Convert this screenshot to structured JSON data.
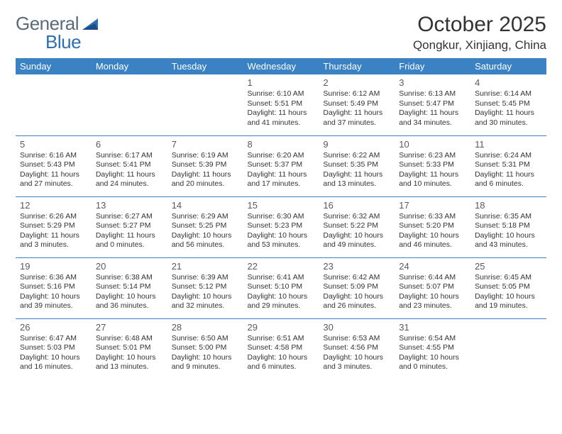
{
  "brand": {
    "name_a": "General",
    "name_b": "Blue"
  },
  "title": "October 2025",
  "location": "Qongkur, Xinjiang, China",
  "colors": {
    "header_bg": "#3b82c4",
    "header_text": "#ffffff",
    "rule": "#3b82c4",
    "body_text": "#333333",
    "logo_gray": "#5a6b7a",
    "logo_blue": "#2f6fb0",
    "page_bg": "#ffffff"
  },
  "day_headers": [
    "Sunday",
    "Monday",
    "Tuesday",
    "Wednesday",
    "Thursday",
    "Friday",
    "Saturday"
  ],
  "weeks": [
    [
      null,
      null,
      null,
      {
        "n": "1",
        "sr": "6:10 AM",
        "ss": "5:51 PM",
        "dl": "11 hours and 41 minutes."
      },
      {
        "n": "2",
        "sr": "6:12 AM",
        "ss": "5:49 PM",
        "dl": "11 hours and 37 minutes."
      },
      {
        "n": "3",
        "sr": "6:13 AM",
        "ss": "5:47 PM",
        "dl": "11 hours and 34 minutes."
      },
      {
        "n": "4",
        "sr": "6:14 AM",
        "ss": "5:45 PM",
        "dl": "11 hours and 30 minutes."
      }
    ],
    [
      {
        "n": "5",
        "sr": "6:16 AM",
        "ss": "5:43 PM",
        "dl": "11 hours and 27 minutes."
      },
      {
        "n": "6",
        "sr": "6:17 AM",
        "ss": "5:41 PM",
        "dl": "11 hours and 24 minutes."
      },
      {
        "n": "7",
        "sr": "6:19 AM",
        "ss": "5:39 PM",
        "dl": "11 hours and 20 minutes."
      },
      {
        "n": "8",
        "sr": "6:20 AM",
        "ss": "5:37 PM",
        "dl": "11 hours and 17 minutes."
      },
      {
        "n": "9",
        "sr": "6:22 AM",
        "ss": "5:35 PM",
        "dl": "11 hours and 13 minutes."
      },
      {
        "n": "10",
        "sr": "6:23 AM",
        "ss": "5:33 PM",
        "dl": "11 hours and 10 minutes."
      },
      {
        "n": "11",
        "sr": "6:24 AM",
        "ss": "5:31 PM",
        "dl": "11 hours and 6 minutes."
      }
    ],
    [
      {
        "n": "12",
        "sr": "6:26 AM",
        "ss": "5:29 PM",
        "dl": "11 hours and 3 minutes."
      },
      {
        "n": "13",
        "sr": "6:27 AM",
        "ss": "5:27 PM",
        "dl": "11 hours and 0 minutes."
      },
      {
        "n": "14",
        "sr": "6:29 AM",
        "ss": "5:25 PM",
        "dl": "10 hours and 56 minutes."
      },
      {
        "n": "15",
        "sr": "6:30 AM",
        "ss": "5:23 PM",
        "dl": "10 hours and 53 minutes."
      },
      {
        "n": "16",
        "sr": "6:32 AM",
        "ss": "5:22 PM",
        "dl": "10 hours and 49 minutes."
      },
      {
        "n": "17",
        "sr": "6:33 AM",
        "ss": "5:20 PM",
        "dl": "10 hours and 46 minutes."
      },
      {
        "n": "18",
        "sr": "6:35 AM",
        "ss": "5:18 PM",
        "dl": "10 hours and 43 minutes."
      }
    ],
    [
      {
        "n": "19",
        "sr": "6:36 AM",
        "ss": "5:16 PM",
        "dl": "10 hours and 39 minutes."
      },
      {
        "n": "20",
        "sr": "6:38 AM",
        "ss": "5:14 PM",
        "dl": "10 hours and 36 minutes."
      },
      {
        "n": "21",
        "sr": "6:39 AM",
        "ss": "5:12 PM",
        "dl": "10 hours and 32 minutes."
      },
      {
        "n": "22",
        "sr": "6:41 AM",
        "ss": "5:10 PM",
        "dl": "10 hours and 29 minutes."
      },
      {
        "n": "23",
        "sr": "6:42 AM",
        "ss": "5:09 PM",
        "dl": "10 hours and 26 minutes."
      },
      {
        "n": "24",
        "sr": "6:44 AM",
        "ss": "5:07 PM",
        "dl": "10 hours and 23 minutes."
      },
      {
        "n": "25",
        "sr": "6:45 AM",
        "ss": "5:05 PM",
        "dl": "10 hours and 19 minutes."
      }
    ],
    [
      {
        "n": "26",
        "sr": "6:47 AM",
        "ss": "5:03 PM",
        "dl": "10 hours and 16 minutes."
      },
      {
        "n": "27",
        "sr": "6:48 AM",
        "ss": "5:01 PM",
        "dl": "10 hours and 13 minutes."
      },
      {
        "n": "28",
        "sr": "6:50 AM",
        "ss": "5:00 PM",
        "dl": "10 hours and 9 minutes."
      },
      {
        "n": "29",
        "sr": "6:51 AM",
        "ss": "4:58 PM",
        "dl": "10 hours and 6 minutes."
      },
      {
        "n": "30",
        "sr": "6:53 AM",
        "ss": "4:56 PM",
        "dl": "10 hours and 3 minutes."
      },
      {
        "n": "31",
        "sr": "6:54 AM",
        "ss": "4:55 PM",
        "dl": "10 hours and 0 minutes."
      },
      null
    ]
  ],
  "labels": {
    "sunrise": "Sunrise:",
    "sunset": "Sunset:",
    "daylight": "Daylight:"
  }
}
